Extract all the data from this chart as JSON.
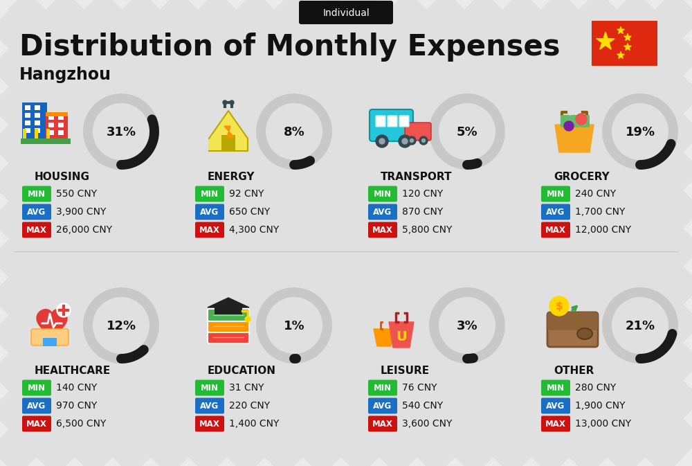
{
  "title": "Distribution of Monthly Expenses",
  "subtitle": "Hangzhou",
  "badge": "Individual",
  "bg_color": "#ebebeb",
  "categories": [
    {
      "name": "HOUSING",
      "pct": 31,
      "min_val": "550 CNY",
      "avg_val": "3,900 CNY",
      "max_val": "26,000 CNY",
      "row": 0,
      "col": 0
    },
    {
      "name": "ENERGY",
      "pct": 8,
      "min_val": "92 CNY",
      "avg_val": "650 CNY",
      "max_val": "4,300 CNY",
      "row": 0,
      "col": 1
    },
    {
      "name": "TRANSPORT",
      "pct": 5,
      "min_val": "120 CNY",
      "avg_val": "870 CNY",
      "max_val": "5,800 CNY",
      "row": 0,
      "col": 2
    },
    {
      "name": "GROCERY",
      "pct": 19,
      "min_val": "240 CNY",
      "avg_val": "1,700 CNY",
      "max_val": "12,000 CNY",
      "row": 0,
      "col": 3
    },
    {
      "name": "HEALTHCARE",
      "pct": 12,
      "min_val": "140 CNY",
      "avg_val": "970 CNY",
      "max_val": "6,500 CNY",
      "row": 1,
      "col": 0
    },
    {
      "name": "EDUCATION",
      "pct": 1,
      "min_val": "31 CNY",
      "avg_val": "220 CNY",
      "max_val": "1,400 CNY",
      "row": 1,
      "col": 1
    },
    {
      "name": "LEISURE",
      "pct": 3,
      "min_val": "76 CNY",
      "avg_val": "540 CNY",
      "max_val": "3,600 CNY",
      "row": 1,
      "col": 2
    },
    {
      "name": "OTHER",
      "pct": 21,
      "min_val": "280 CNY",
      "avg_val": "1,900 CNY",
      "max_val": "13,000 CNY",
      "row": 1,
      "col": 3
    }
  ],
  "min_color": "#22bb33",
  "avg_color": "#1a6fc4",
  "max_color": "#cc1111",
  "arc_color": "#1a1a1a",
  "arc_bg_color": "#c8c8c8",
  "text_color": "#111111",
  "stripe_color": "#d8d8d8",
  "flag_red": "#DE2910",
  "flag_yellow": "#FFDE00"
}
